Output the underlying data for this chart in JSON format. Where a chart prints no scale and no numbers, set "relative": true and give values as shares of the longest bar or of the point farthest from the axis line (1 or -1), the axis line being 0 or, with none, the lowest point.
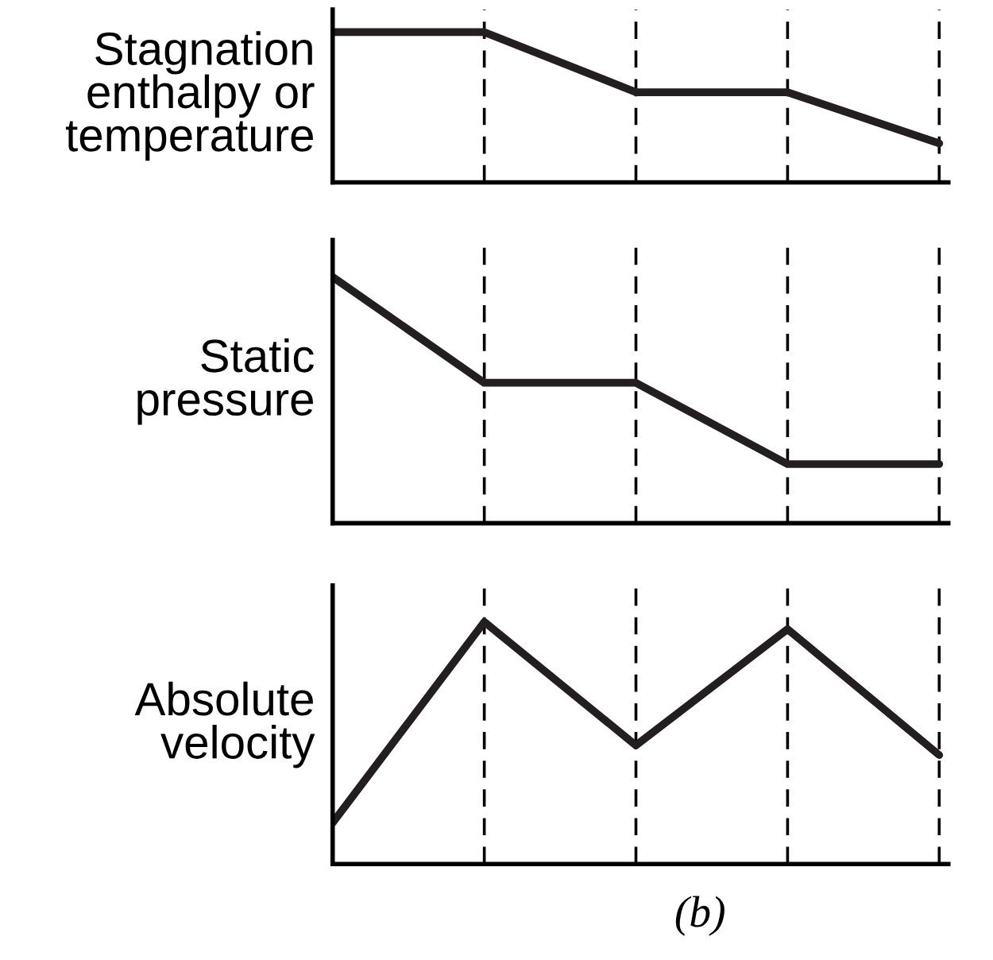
{
  "chart_data": [
    {
      "type": "line",
      "ylabel": "Stagnation\nenthalpy or\ntemperature",
      "categories": [
        null,
        null,
        null,
        null,
        null
      ],
      "values": [
        1,
        1,
        0.6,
        0.6,
        0.26
      ],
      "color": "#231f20",
      "relative": true,
      "grid": "x",
      "marker": "none",
      "line_style": "solid"
    },
    {
      "type": "line",
      "ylabel": "Static\npressure",
      "categories": [
        null,
        null,
        null,
        null,
        null
      ],
      "values": [
        1,
        0.57,
        0.57,
        0.24,
        0.24
      ],
      "color": "#231f20",
      "relative": true,
      "grid": "x",
      "marker": "none",
      "line_style": "solid"
    },
    {
      "type": "line",
      "ylabel": "Absolute\nvelocity",
      "categories": [
        null,
        null,
        null,
        null,
        null
      ],
      "values": [
        0.17,
        1,
        0.49,
        0.97,
        0.45
      ],
      "color": "#231f20",
      "relative": true,
      "grid": "x",
      "marker": "none",
      "line_style": "solid",
      "annotations": [
        "(b)"
      ]
    }
  ]
}
